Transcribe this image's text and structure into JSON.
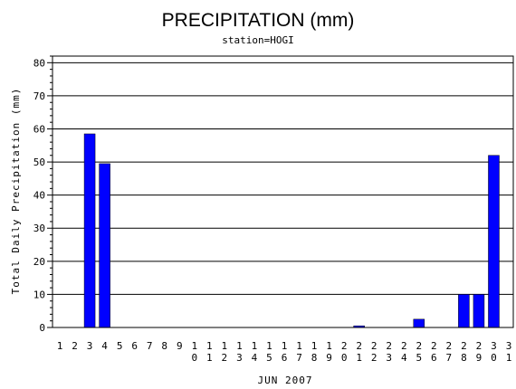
{
  "chart_data": {
    "type": "bar",
    "title": "PRECIPITATION (mm)",
    "subtitle": "station=HOGI",
    "xlabel": "JUN 2007",
    "ylabel": "Total Daily Precipitation (mm)",
    "ylim": [
      0,
      82
    ],
    "yticks": [
      0,
      10,
      20,
      30,
      40,
      50,
      60,
      70,
      80
    ],
    "grid": true,
    "bar_color": "#0000ff",
    "categories": [
      "1",
      "2",
      "3",
      "4",
      "5",
      "6",
      "7",
      "8",
      "9",
      "10",
      "11",
      "12",
      "13",
      "14",
      "15",
      "16",
      "17",
      "18",
      "19",
      "20",
      "21",
      "22",
      "23",
      "24",
      "25",
      "26",
      "27",
      "28",
      "29",
      "30",
      "31"
    ],
    "values": [
      0,
      0,
      58.5,
      49.5,
      0,
      0,
      0,
      0,
      0,
      0,
      0,
      0,
      0,
      0,
      0,
      0,
      0,
      0,
      0,
      0,
      0.5,
      0,
      0,
      0,
      2.5,
      0,
      0,
      10,
      10,
      52,
      0
    ]
  }
}
